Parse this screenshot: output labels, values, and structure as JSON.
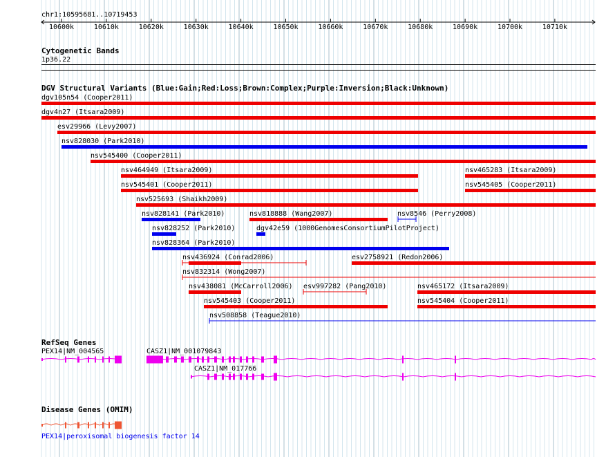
{
  "region": "chr1:10595681..10719453",
  "ruler": {
    "ticks": [
      "10600k",
      "10610k",
      "10620k",
      "10630k",
      "10640k",
      "10650k",
      "10660k",
      "10670k",
      "10680k",
      "10690k",
      "10700k",
      "10710k"
    ]
  },
  "cyto": {
    "title": "Cytogenetic Bands",
    "band": "1p36.22"
  },
  "dgv": {
    "title": "DGV Structural Variants (Blue:Gain;Red:Loss;Brown:Complex;Purple:Inversion;Black:Unknown)",
    "colors": {
      "gain": "#0000ee",
      "loss": "#ee0000"
    },
    "variants": [
      {
        "label": "dgv105n54 (Cooper2011)",
        "type": "loss"
      },
      {
        "label": "dgv4n27 (Itsara2009)",
        "type": "loss"
      },
      {
        "label": "esv29966 (Levy2007)",
        "type": "loss"
      },
      {
        "label": "nsv828030 (Park2010)",
        "type": "gain"
      },
      {
        "label": "nsv545400 (Cooper2011)",
        "type": "loss"
      },
      {
        "label": "nsv464949 (Itsara2009)",
        "type": "loss"
      },
      {
        "label": "nsv465283 (Itsara2009)",
        "type": "loss"
      },
      {
        "label": "nsv545401 (Cooper2011)",
        "type": "loss"
      },
      {
        "label": "nsv545405 (Cooper2011)",
        "type": "loss"
      },
      {
        "label": "nsv525693 (Shaikh2009)",
        "type": "loss"
      },
      {
        "label": "nsv828141 (Park2010)",
        "type": "gain"
      },
      {
        "label": "nsv818888 (Wang2007)",
        "type": "loss"
      },
      {
        "label": "nsv8546 (Perry2008)",
        "type": "gain"
      },
      {
        "label": "nsv828252 (Park2010)",
        "type": "gain"
      },
      {
        "label": "dgv42e59 (1000GenomesConsortiumPilotProject)",
        "type": "gain"
      },
      {
        "label": "nsv828364 (Park2010)",
        "type": "gain"
      },
      {
        "label": "nsv436924 (Conrad2006)",
        "type": "loss"
      },
      {
        "label": "esv2758921 (Redon2006)",
        "type": "loss"
      },
      {
        "label": "nsv832314 (Wong2007)",
        "type": "loss"
      },
      {
        "label": "nsv438081 (McCarroll2006)",
        "type": "loss"
      },
      {
        "label": "esv997282 (Pang2010)",
        "type": "loss"
      },
      {
        "label": "nsv465172 (Itsara2009)",
        "type": "loss"
      },
      {
        "label": "nsv545403 (Cooper2011)",
        "type": "loss"
      },
      {
        "label": "nsv545404 (Cooper2011)",
        "type": "loss"
      },
      {
        "label": "nsv508858 (Teague2010)",
        "type": "gain"
      }
    ]
  },
  "refseq": {
    "title": "RefSeq Genes",
    "color": "#ee00ee",
    "genes": [
      {
        "label": "PEX14|NM_004565"
      },
      {
        "label": "CASZ1|NM_001079843"
      },
      {
        "label": "CASZ1|NM_017766"
      }
    ]
  },
  "omim": {
    "title": "Disease Genes (OMIM)",
    "color": "#ee5533",
    "label": "PEX14|peroxisomal biogenesis factor 14"
  }
}
